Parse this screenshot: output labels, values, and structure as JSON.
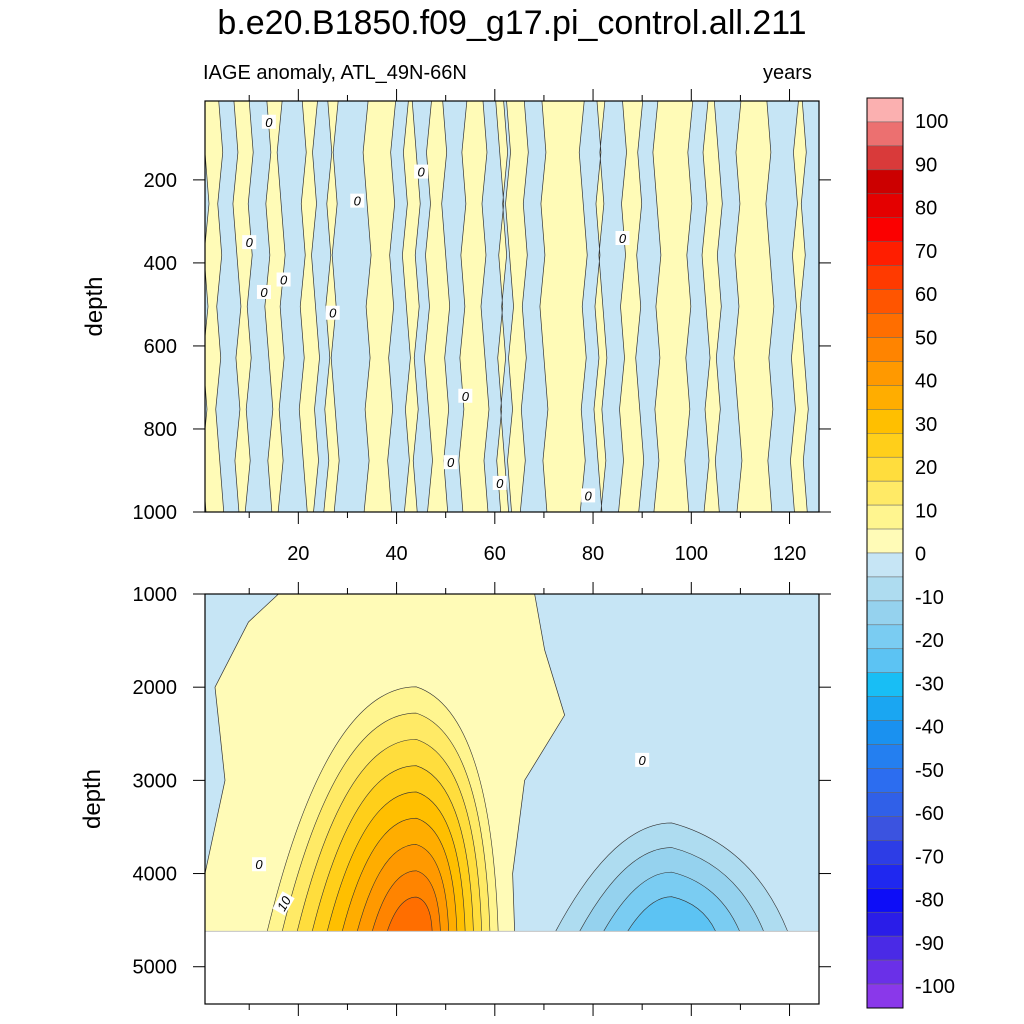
{
  "title": "b.e20.B1850.f09_g17.pi_control.all.211",
  "subtitle_left": "IAGE anomaly, ATL_49N-66N",
  "subtitle_right": "years",
  "colors": {
    "pos": [
      "#fffbb7",
      "#fff58f",
      "#ffea66",
      "#ffdd3d",
      "#ffcf1a",
      "#ffbf00",
      "#ffad00",
      "#ff9900",
      "#ff8400",
      "#ff6e00",
      "#ff5500",
      "#ff3a00",
      "#ff1e00",
      "#fb0000",
      "#e40000",
      "#cc0000",
      "#d93a3a",
      "#ec7070",
      "#fbb0b0"
    ],
    "neg": [
      "#c6e5f5",
      "#aedcf0",
      "#95d2ee",
      "#7accf2",
      "#5cc3f3",
      "#18bef5",
      "#1aa6f2",
      "#1a91f0",
      "#247ff0",
      "#2c6df0",
      "#3060e8",
      "#3b53e0",
      "#2d3de6",
      "#1f28f0",
      "#0d0df7",
      "#2a1de8",
      "#4a2ae6",
      "#6a30e8",
      "#8a38ea"
    ],
    "line": "#333333"
  },
  "chart_data": [
    {
      "type": "heatmap",
      "panel": "upper",
      "ylabel": "depth",
      "xlabel": "",
      "x_ticks": [
        20,
        40,
        60,
        80,
        100,
        120
      ],
      "y_ticks": [
        200,
        400,
        600,
        800,
        1000
      ],
      "xlim": [
        1,
        126
      ],
      "ylim": [
        1000,
        10
      ],
      "contour_label": "0",
      "x_positive_intervals": [
        [
          1,
          4
        ],
        [
          7.5,
          10
        ],
        [
          14,
          16.5
        ],
        [
          21,
          23.5
        ],
        [
          26,
          27.5
        ],
        [
          34,
          39
        ],
        [
          42,
          44
        ],
        [
          46.5,
          50
        ],
        [
          53.5,
          58
        ],
        [
          61,
          62
        ],
        [
          63,
          66
        ],
        [
          70,
          78
        ],
        [
          81,
          82
        ],
        [
          86,
          89.5
        ],
        [
          93,
          99.5
        ],
        [
          103,
          105.5
        ],
        [
          109.5,
          116
        ],
        [
          121,
          123
        ]
      ]
    },
    {
      "type": "heatmap",
      "panel": "lower",
      "ylabel": "depth",
      "xlabel": "",
      "y_ticks": [
        1000,
        2000,
        3000,
        4000,
        5000
      ],
      "xlim": [
        1,
        126
      ],
      "ylim": [
        5400,
        1000
      ],
      "max_data_depth": 4620,
      "contour_labels": [
        "0",
        "0",
        "10"
      ],
      "x_positive_intervals": [
        [
          18,
          62
        ]
      ],
      "positive_core": {
        "x_center": 44,
        "depth": 4620,
        "max_value": 80
      },
      "negative_core": {
        "x_center": 96,
        "depth": 4620,
        "min_value": -20
      }
    }
  ],
  "colorbar": {
    "labels": [
      "100",
      "90",
      "80",
      "70",
      "60",
      "50",
      "40",
      "30",
      "20",
      "10",
      "0",
      "-10",
      "-20",
      "-30",
      "-40",
      "-50",
      "-60",
      "-70",
      "-80",
      "-90",
      "-100"
    ]
  }
}
